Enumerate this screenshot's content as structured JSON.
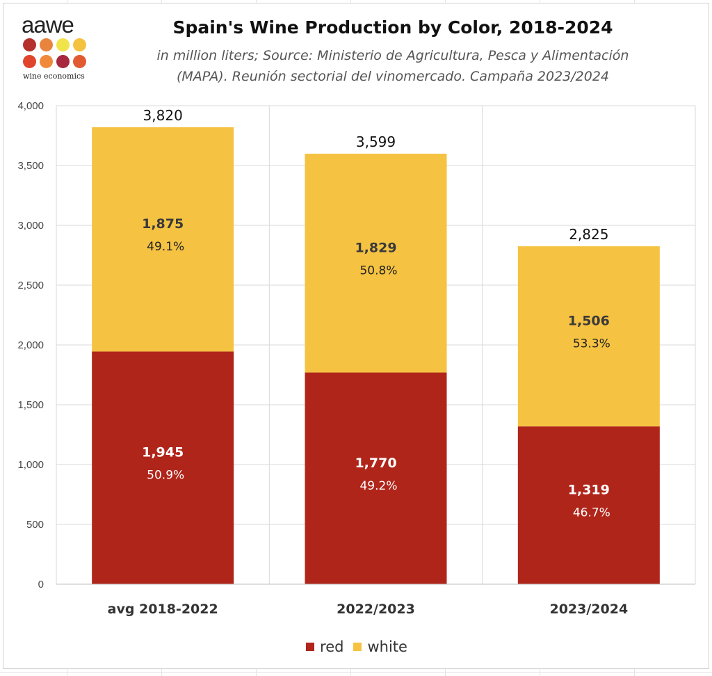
{
  "logo": {
    "word": "aawe",
    "tagline": "wine economics",
    "dot_colors": [
      "#b5302a",
      "#e8843d",
      "#f1e34a",
      "#f4c23f",
      "#e0442c",
      "#f08a3a",
      "#a7283f",
      "#e25a32"
    ]
  },
  "header": {
    "title": "Spain's Wine Production by Color, 2018-2024",
    "subtitle_line1": "in million liters; Source: Ministerio de Agricultura, Pesca y Alimentación",
    "subtitle_line2": "(MAPA). Reunión sectorial del vinomercado. Campaña 2023/2024"
  },
  "chart_data": {
    "type": "bar",
    "stacked": true,
    "title": "Spain's Wine Production by Color, 2018-2024",
    "categories": [
      "avg 2018-2022",
      "2022/2023",
      "2023/2024"
    ],
    "series": [
      {
        "name": "red",
        "color": "#b0251a",
        "values": [
          1945,
          1770,
          1319
        ],
        "value_labels": [
          "1,945",
          "1,770",
          "1,319"
        ],
        "share_labels": [
          "50.9%",
          "49.2%",
          "46.7%"
        ]
      },
      {
        "name": "white",
        "color": "#f5c242",
        "values": [
          1875,
          1829,
          1506
        ],
        "value_labels": [
          "1,875",
          "1,829",
          "1,506"
        ],
        "share_labels": [
          "49.1%",
          "50.8%",
          "53.3%"
        ]
      }
    ],
    "totals": [
      3820,
      3599,
      2825
    ],
    "total_labels": [
      "3,820",
      "3,599",
      "2,825"
    ],
    "ylim": [
      0,
      4000
    ],
    "yticks": [
      0,
      500,
      1000,
      1500,
      2000,
      2500,
      3000,
      3500,
      4000
    ],
    "ytick_labels": [
      "0",
      "500",
      "1,000",
      "1,500",
      "2,000",
      "2,500",
      "3,000",
      "3,500",
      "4,000"
    ],
    "grid": true,
    "legend_position": "bottom"
  }
}
